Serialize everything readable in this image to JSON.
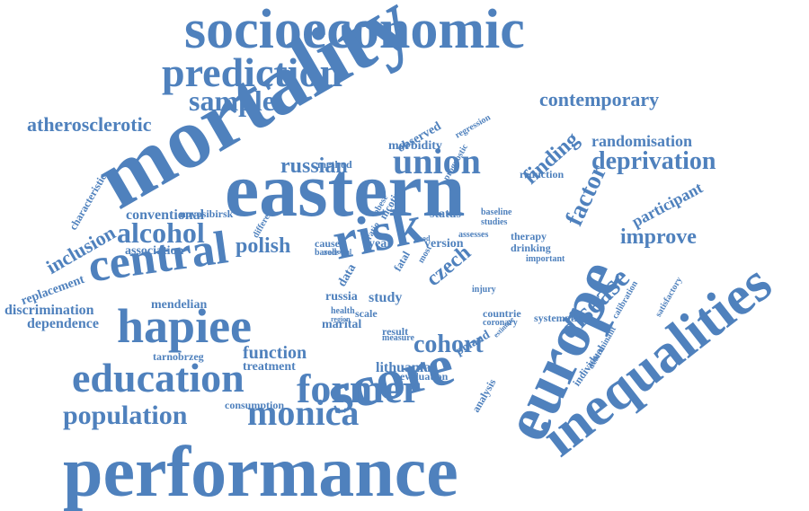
{
  "color": "#4f81bd",
  "words": [
    "socioeconomic",
    "prediction",
    "sample",
    "mortality",
    "contemporary",
    "atherosclerotic",
    "randomisation",
    "deprivation",
    "eastern",
    "union",
    "russian",
    "finding",
    "factor",
    "participant",
    "alcohol",
    "conventional",
    "inclusion",
    "replacement",
    "association",
    "improve",
    "polish",
    "central",
    "risk",
    "czech",
    "europe",
    "inequalities",
    "hapiee",
    "disease",
    "score",
    "mendelian",
    "discrimination",
    "dependence",
    "function",
    "treatment",
    "tarnobrzeg",
    "cohort",
    "lithuania",
    "education",
    "former",
    "population",
    "monica",
    "performance",
    "consumption",
    "novosibirsk",
    "characteristic",
    "different",
    "cause",
    "based",
    "role",
    "social",
    "ratio",
    "nicotine",
    "status",
    "baseline",
    "studies",
    "version",
    "assesses",
    "therapy",
    "drinking",
    "important",
    "year",
    "fatal",
    "most",
    "russia",
    "study",
    "marital",
    "scale",
    "health",
    "region",
    "result",
    "measure",
    "poland",
    "countrie",
    "coronary",
    "estimate",
    "systematic",
    "calibration",
    "satisfactory",
    "determinant",
    "individual",
    "analysis",
    "evaluation",
    "data",
    "good",
    "method",
    "morbidity",
    "observed",
    "prognostic",
    "regression",
    "reduction",
    "injury",
    "obese"
  ]
}
